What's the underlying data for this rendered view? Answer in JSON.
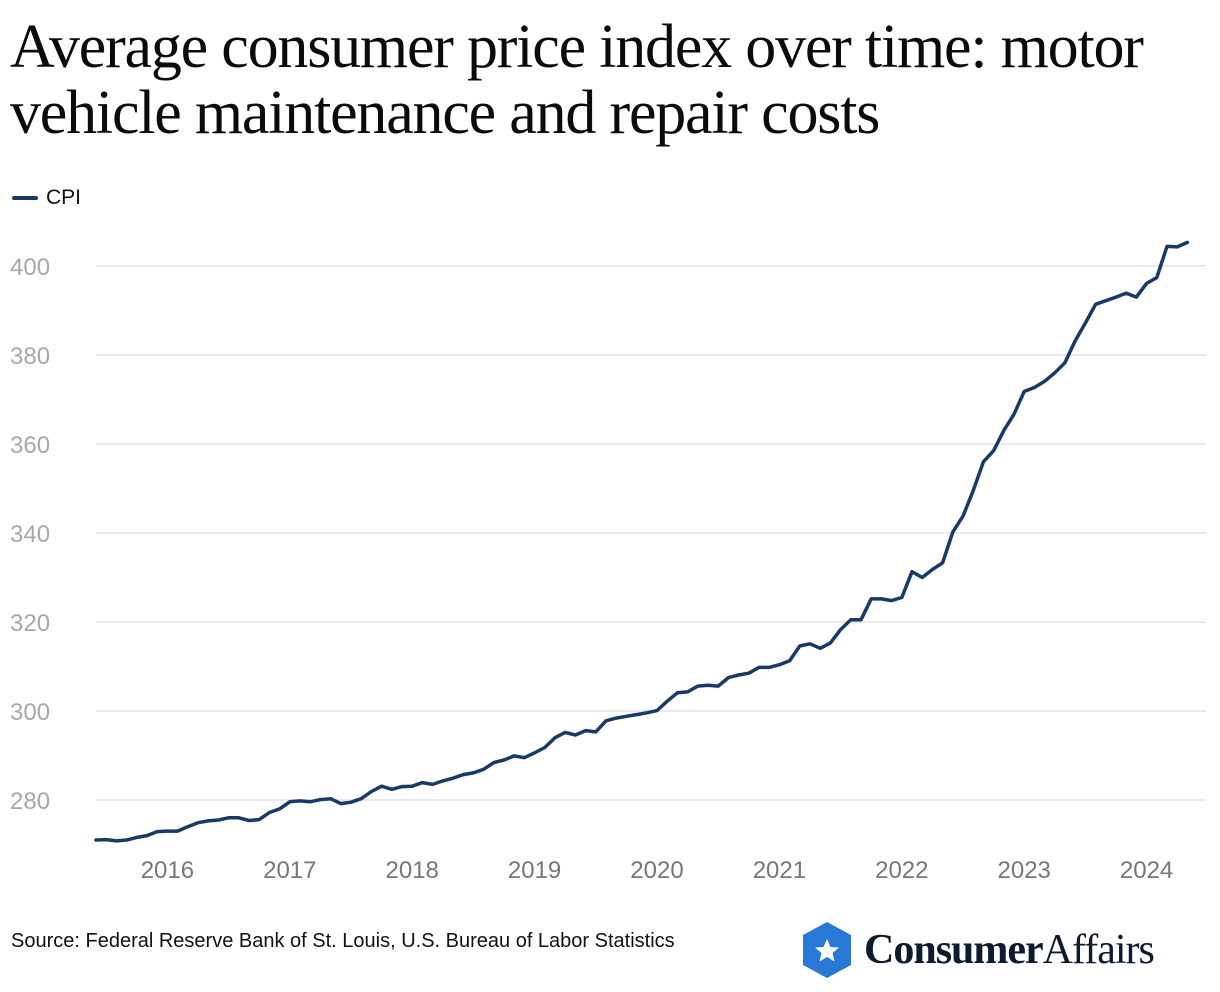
{
  "chart_data": {
    "type": "line",
    "title": "Average consumer price index over time: motor vehicle maintenance and repair costs",
    "legend": {
      "position": "top-left",
      "entries": [
        "CPI"
      ]
    },
    "xlabel": "",
    "ylabel": "",
    "x_start": "2015-06",
    "x_frequency": "monthly",
    "x_ticks": [
      "2016",
      "2017",
      "2018",
      "2019",
      "2020",
      "2021",
      "2022",
      "2023",
      "2024"
    ],
    "y_ticks": [
      280,
      300,
      320,
      340,
      360,
      380,
      400
    ],
    "ylim": [
      268,
      408
    ],
    "grid": "horizontal",
    "series": [
      {
        "name": "CPI",
        "color": "#183a66",
        "values": [
          271,
          271.1,
          270.8,
          271,
          271.6,
          272,
          272.9,
          273,
          273,
          274,
          274.9,
          275.3,
          275.5,
          276,
          276,
          275.4,
          275.6,
          277.2,
          278,
          279.6,
          279.8,
          279.6,
          280.1,
          280.3,
          279.2,
          279.5,
          280.3,
          281.9,
          283.1,
          282.4,
          283,
          283.1,
          283.9,
          283.5,
          284.3,
          284.9,
          285.7,
          286.1,
          286.9,
          288.4,
          289,
          289.9,
          289.5,
          290.6,
          291.8,
          294,
          295.2,
          294.6,
          295.6,
          295.3,
          297.8,
          298.4,
          298.8,
          299.2,
          299.6,
          300.1,
          302.2,
          304.1,
          304.3,
          305.6,
          305.8,
          305.6,
          307.5,
          308.1,
          308.5,
          309.8,
          309.8,
          310.4,
          311.3,
          314.6,
          315.1,
          314.1,
          315.3,
          318.3,
          320.5,
          320.5,
          325.2,
          325.2,
          324.8,
          325.5,
          331.3,
          330,
          331.8,
          333.3,
          340.2,
          343.8,
          349.5,
          356,
          358.5,
          363,
          366.7,
          371.8,
          372.7,
          374.1,
          376,
          378.3,
          383.2,
          387.2,
          391.4,
          392.2,
          393,
          393.9,
          393,
          396.1,
          397.4,
          404.4,
          404.3,
          405.3
        ]
      }
    ]
  },
  "footer": {
    "source": "Source: Federal Reserve Bank of St. Louis, U.S. Bureau of Labor Statistics",
    "logo_text": "ConsumerAffairs",
    "logo_color": "#2a78d6"
  }
}
